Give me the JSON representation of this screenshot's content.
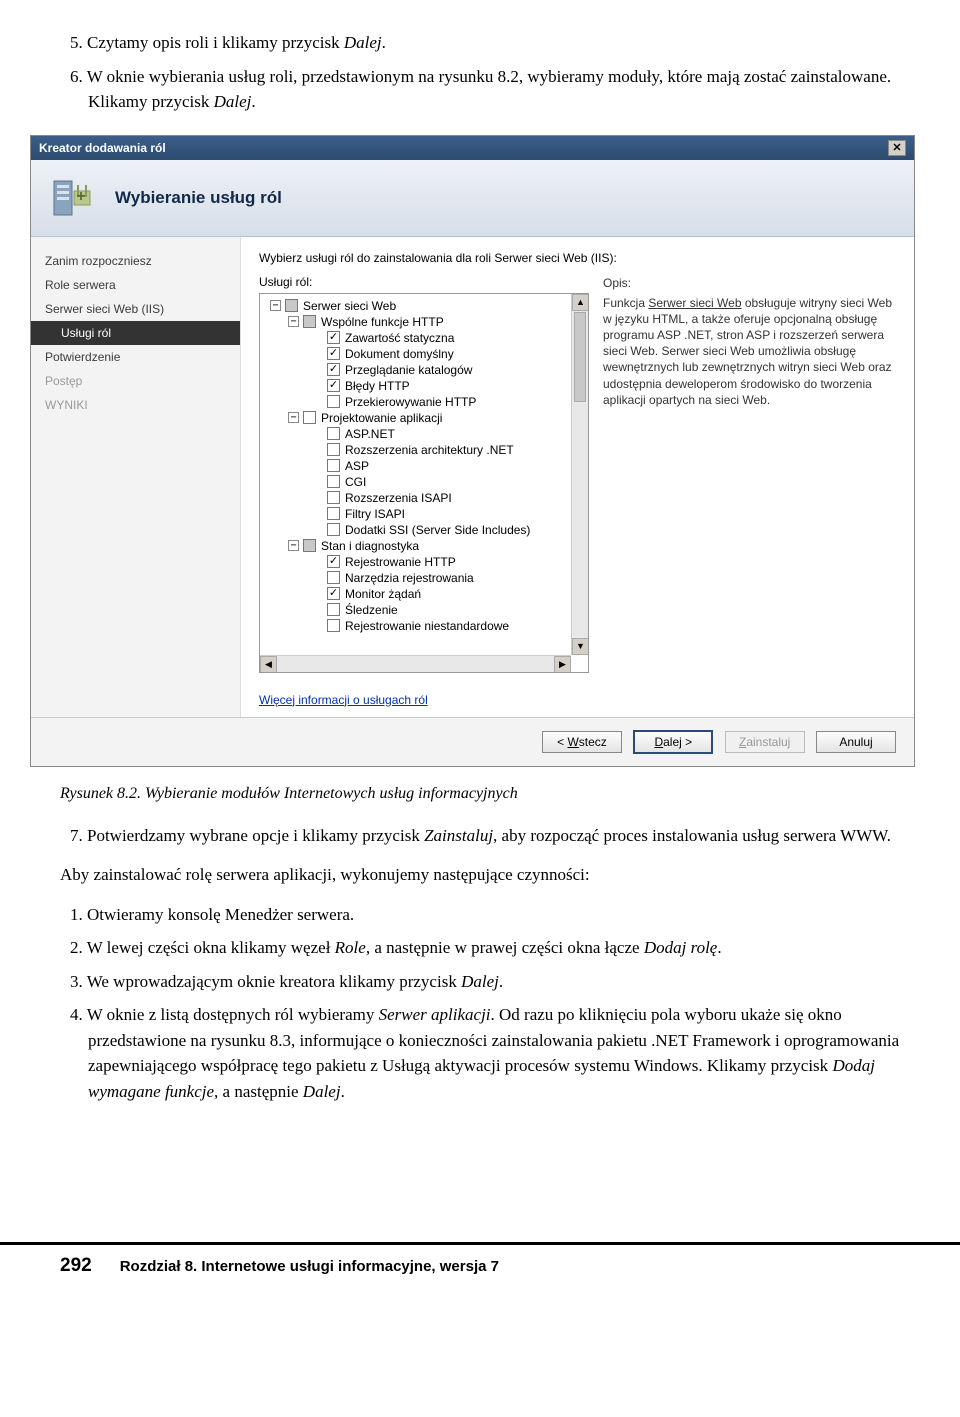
{
  "intro": {
    "item5": "5. Czytamy opis roli i klikamy przycisk ",
    "item5_em": "Dalej",
    "item5_end": ".",
    "item6a": "6. W oknie wybierania usług roli, przedstawionym na rysunku 8.2, wybieramy moduły, które mają zostać zainstalowane. Klikamy przycisk ",
    "item6_em": "Dalej",
    "item6_end": "."
  },
  "wizard": {
    "title": "Kreator dodawania ról",
    "header": "Wybieranie usług ról",
    "sidebar": [
      {
        "label": "Zanim rozpoczniesz",
        "cls": ""
      },
      {
        "label": "Role serwera",
        "cls": ""
      },
      {
        "label": "Serwer sieci Web (IIS)",
        "cls": ""
      },
      {
        "label": "Usługi ról",
        "cls": "selected"
      },
      {
        "label": "Potwierdzenie",
        "cls": ""
      },
      {
        "label": "Postęp",
        "cls": "disabled"
      },
      {
        "label": "WYNIKI",
        "cls": "disabled"
      }
    ],
    "instruction": "Wybierz usługi ról do zainstalowania dla roli Serwer sieci Web (IIS):",
    "tree_label": "Usługi ról:",
    "desc_label": "Opis:",
    "desc_text_pre": "Funkcja ",
    "desc_link": "Serwer sieci Web",
    "desc_text_post": " obsługuje witryny sieci Web w języku HTML, a także oferuje opcjonalną obsługę programu ASP .NET, stron ASP i rozszerzeń serwera sieci Web. Serwer sieci Web umożliwia obsługę wewnętrznych lub zewnętrznych witryn sieci Web oraz udostępnia deweloperom środowisko do tworzenia aplikacji opartych na sieci Web.",
    "tree": [
      {
        "lvl": 1,
        "exp": "−",
        "cb": "tri",
        "label": "Serwer sieci Web"
      },
      {
        "lvl": 2,
        "exp": "−",
        "cb": "tri",
        "label": "Wspólne funkcje HTTP"
      },
      {
        "lvl": 3,
        "exp": "",
        "cb": "checked",
        "label": "Zawartość statyczna"
      },
      {
        "lvl": 3,
        "exp": "",
        "cb": "checked",
        "label": "Dokument domyślny"
      },
      {
        "lvl": 3,
        "exp": "",
        "cb": "checked",
        "label": "Przeglądanie katalogów"
      },
      {
        "lvl": 3,
        "exp": "",
        "cb": "checked",
        "label": "Błędy HTTP"
      },
      {
        "lvl": 3,
        "exp": "",
        "cb": "",
        "label": "Przekierowywanie HTTP"
      },
      {
        "lvl": 2,
        "exp": "−",
        "cb": "",
        "label": "Projektowanie aplikacji"
      },
      {
        "lvl": 3,
        "exp": "",
        "cb": "",
        "label": "ASP.NET"
      },
      {
        "lvl": 3,
        "exp": "",
        "cb": "",
        "label": "Rozszerzenia architektury .NET"
      },
      {
        "lvl": 3,
        "exp": "",
        "cb": "",
        "label": "ASP"
      },
      {
        "lvl": 3,
        "exp": "",
        "cb": "",
        "label": "CGI"
      },
      {
        "lvl": 3,
        "exp": "",
        "cb": "",
        "label": "Rozszerzenia ISAPI"
      },
      {
        "lvl": 3,
        "exp": "",
        "cb": "",
        "label": "Filtry ISAPI"
      },
      {
        "lvl": 3,
        "exp": "",
        "cb": "",
        "label": "Dodatki SSI (Server Side Includes)"
      },
      {
        "lvl": 2,
        "exp": "−",
        "cb": "tri",
        "label": "Stan i diagnostyka"
      },
      {
        "lvl": 3,
        "exp": "",
        "cb": "checked",
        "label": "Rejestrowanie HTTP"
      },
      {
        "lvl": 3,
        "exp": "",
        "cb": "",
        "label": "Narzędzia rejestrowania"
      },
      {
        "lvl": 3,
        "exp": "",
        "cb": "checked",
        "label": "Monitor żądań"
      },
      {
        "lvl": 3,
        "exp": "",
        "cb": "",
        "label": "Śledzenie"
      },
      {
        "lvl": 3,
        "exp": "",
        "cb": "",
        "label": "Rejestrowanie niestandardowe"
      }
    ],
    "more_link": "Więcej informacji o usługach ról",
    "buttons": {
      "back": "Wstecz",
      "next": "Dalej >",
      "install": "Zainstaluj",
      "cancel": "Anuluj"
    }
  },
  "caption": "Rysunek 8.2. Wybieranie modułów Internetowych usług informacyjnych",
  "after": {
    "item7a": "7. Potwierdzamy wybrane opcje i klikamy przycisk ",
    "item7_em": "Zainstaluj",
    "item7b": ", aby rozpocząć proces instalowania usług serwera WWW.",
    "para1": "Aby zainstalować rolę serwera aplikacji, wykonujemy następujące czynności:",
    "n1": "1. Otwieramy konsolę Menedżer serwera.",
    "n2a": "2. W lewej części okna klikamy węzeł ",
    "n2_em1": "Role",
    "n2b": ", a następnie w prawej części okna łącze ",
    "n2_em2": "Dodaj rolę",
    "n2c": ".",
    "n3a": "3. We wprowadzającym oknie kreatora klikamy przycisk ",
    "n3_em": "Dalej",
    "n3b": ".",
    "n4a": "4. W oknie z listą dostępnych ról wybieramy ",
    "n4_em1": "Serwer aplikacji",
    "n4b": ". Od razu po kliknięciu pola wyboru ukaże się okno przedstawione na rysunku 8.3, informujące o konieczności zainstalowania pakietu .NET Framework i oprogramowania zapewniającego współpracę tego pakietu z Usługą aktywacji procesów systemu Windows. Klikamy przycisk ",
    "n4_em2": "Dodaj wymagane funkcje",
    "n4c": ", a następnie ",
    "n4_em3": "Dalej",
    "n4d": "."
  },
  "footer": {
    "page": "292",
    "chapter": "Rozdział 8. Internetowe usługi informacyjne, wersja 7"
  }
}
